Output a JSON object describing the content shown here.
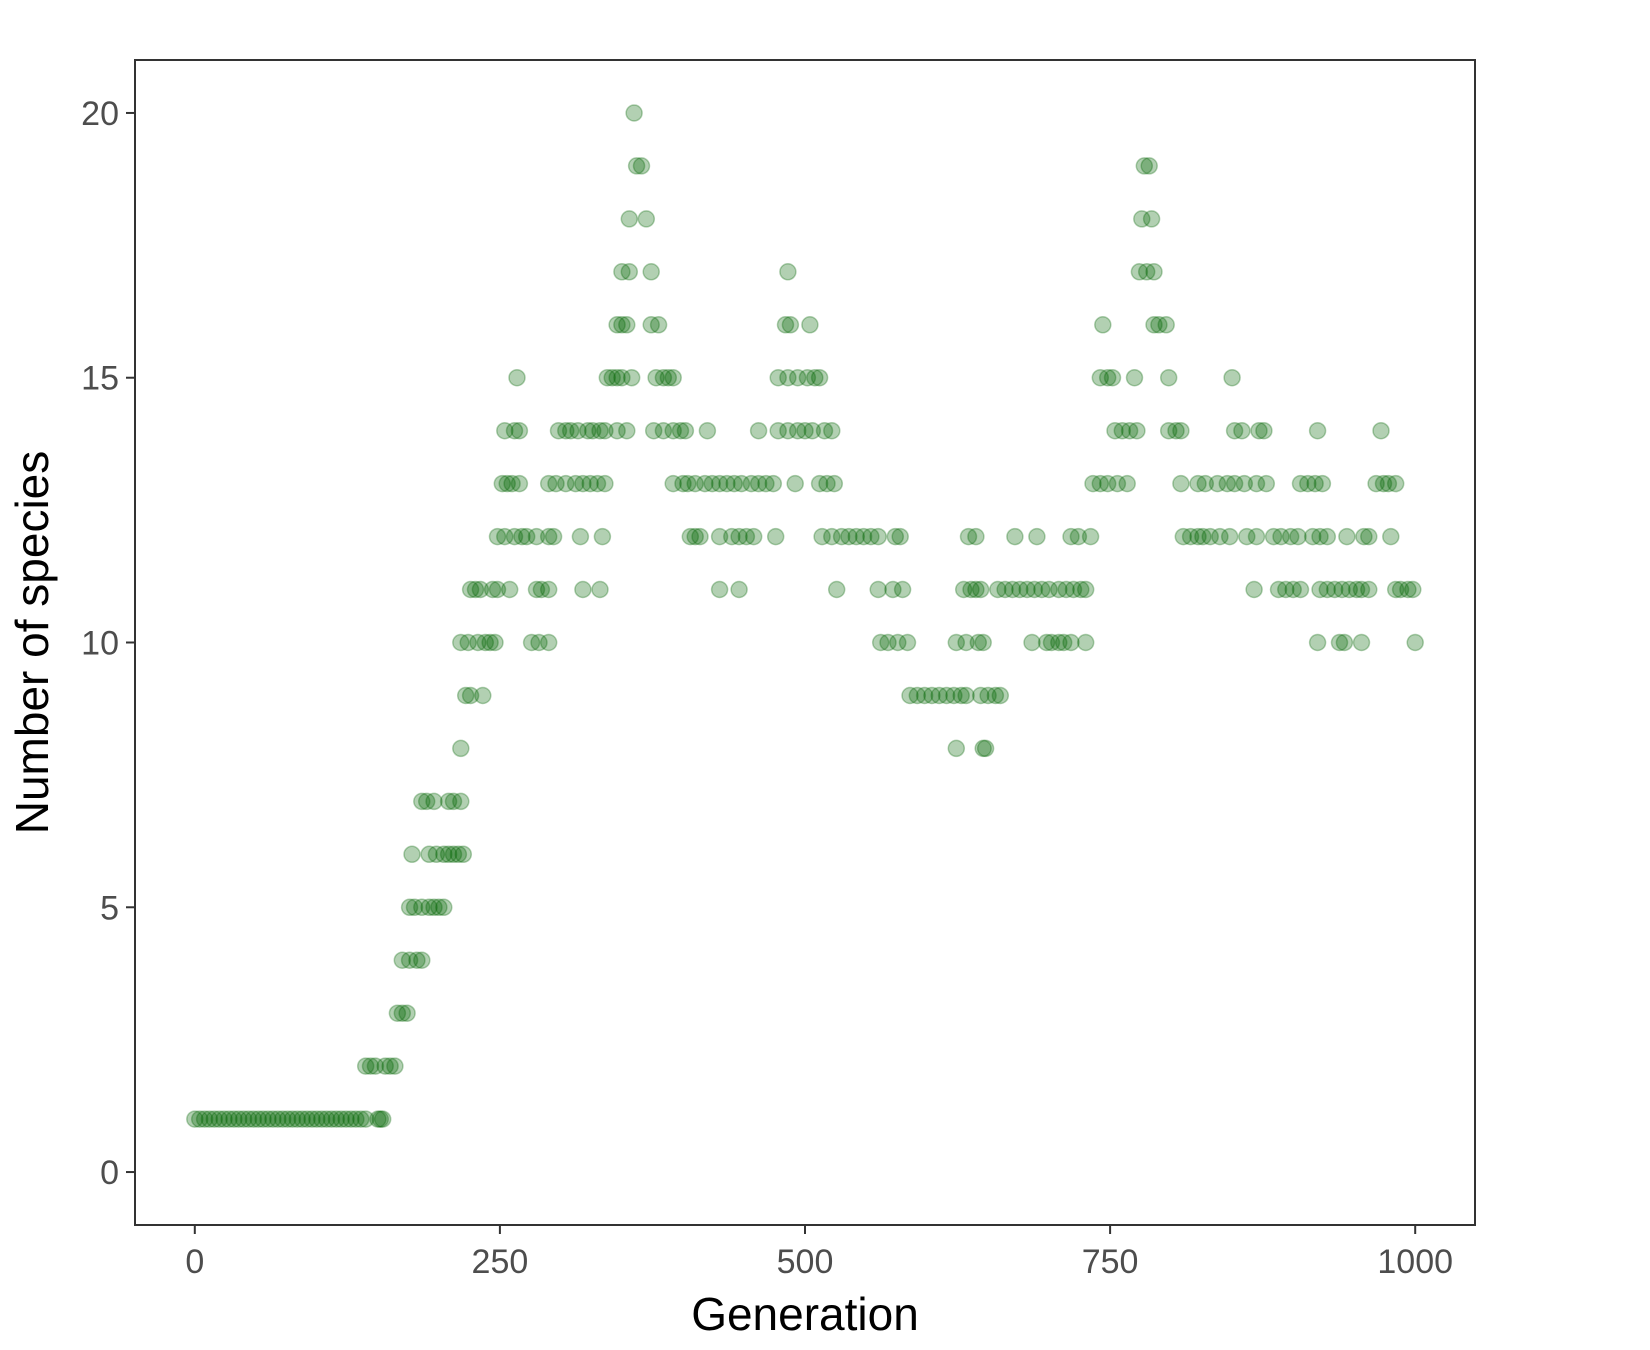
{
  "chart_data": {
    "type": "scatter",
    "title": "",
    "xlabel": "Generation",
    "ylabel": "Number of species",
    "xlim": [
      -49,
      1049
    ],
    "ylim": [
      -1,
      21
    ],
    "x_ticks": [
      0,
      250,
      500,
      750,
      1000
    ],
    "x_tick_labels": [
      "0",
      "250",
      "500",
      "750",
      "1000"
    ],
    "y_ticks": [
      0,
      5,
      10,
      15,
      20
    ],
    "y_tick_labels": [
      "0",
      "5",
      "10",
      "15",
      "20"
    ],
    "grid": false,
    "legend": "none",
    "point_color": "#006400",
    "point_alpha": 0.3,
    "points": [
      [
        0,
        1
      ],
      [
        4,
        1
      ],
      [
        8,
        1
      ],
      [
        12,
        1
      ],
      [
        16,
        1
      ],
      [
        20,
        1
      ],
      [
        24,
        1
      ],
      [
        28,
        1
      ],
      [
        32,
        1
      ],
      [
        36,
        1
      ],
      [
        40,
        1
      ],
      [
        44,
        1
      ],
      [
        48,
        1
      ],
      [
        52,
        1
      ],
      [
        56,
        1
      ],
      [
        60,
        1
      ],
      [
        64,
        1
      ],
      [
        68,
        1
      ],
      [
        72,
        1
      ],
      [
        76,
        1
      ],
      [
        80,
        1
      ],
      [
        84,
        1
      ],
      [
        88,
        1
      ],
      [
        92,
        1
      ],
      [
        96,
        1
      ],
      [
        100,
        1
      ],
      [
        104,
        1
      ],
      [
        108,
        1
      ],
      [
        112,
        1
      ],
      [
        116,
        1
      ],
      [
        120,
        1
      ],
      [
        124,
        1
      ],
      [
        128,
        1
      ],
      [
        132,
        1
      ],
      [
        136,
        1
      ],
      [
        140,
        1
      ],
      [
        140,
        2
      ],
      [
        144,
        2
      ],
      [
        148,
        2
      ],
      [
        150,
        1
      ],
      [
        152,
        1
      ],
      [
        154,
        1
      ],
      [
        156,
        2
      ],
      [
        160,
        2
      ],
      [
        164,
        2
      ],
      [
        166,
        3
      ],
      [
        170,
        3
      ],
      [
        174,
        3
      ],
      [
        170,
        4
      ],
      [
        176,
        4
      ],
      [
        182,
        4
      ],
      [
        186,
        4
      ],
      [
        176,
        5
      ],
      [
        180,
        5
      ],
      [
        186,
        5
      ],
      [
        192,
        5
      ],
      [
        196,
        5
      ],
      [
        200,
        5
      ],
      [
        204,
        5
      ],
      [
        178,
        6
      ],
      [
        192,
        6
      ],
      [
        198,
        6
      ],
      [
        204,
        6
      ],
      [
        208,
        6
      ],
      [
        212,
        6
      ],
      [
        216,
        6
      ],
      [
        220,
        6
      ],
      [
        186,
        7
      ],
      [
        190,
        7
      ],
      [
        196,
        7
      ],
      [
        208,
        7
      ],
      [
        212,
        7
      ],
      [
        218,
        7
      ],
      [
        218,
        8
      ],
      [
        222,
        9
      ],
      [
        226,
        9
      ],
      [
        236,
        9
      ],
      [
        218,
        10
      ],
      [
        224,
        10
      ],
      [
        232,
        10
      ],
      [
        238,
        10
      ],
      [
        242,
        10
      ],
      [
        246,
        10
      ],
      [
        226,
        11
      ],
      [
        230,
        11
      ],
      [
        234,
        11
      ],
      [
        244,
        11
      ],
      [
        248,
        11
      ],
      [
        258,
        11
      ],
      [
        248,
        12
      ],
      [
        254,
        12
      ],
      [
        262,
        12
      ],
      [
        268,
        12
      ],
      [
        272,
        12
      ],
      [
        280,
        12
      ],
      [
        290,
        12
      ],
      [
        294,
        12
      ],
      [
        316,
        12
      ],
      [
        334,
        12
      ],
      [
        252,
        13
      ],
      [
        256,
        13
      ],
      [
        260,
        13
      ],
      [
        266,
        13
      ],
      [
        290,
        13
      ],
      [
        296,
        13
      ],
      [
        304,
        13
      ],
      [
        312,
        13
      ],
      [
        318,
        13
      ],
      [
        324,
        13
      ],
      [
        330,
        13
      ],
      [
        336,
        13
      ],
      [
        254,
        14
      ],
      [
        262,
        14
      ],
      [
        266,
        14
      ],
      [
        298,
        14
      ],
      [
        304,
        14
      ],
      [
        308,
        14
      ],
      [
        314,
        14
      ],
      [
        322,
        14
      ],
      [
        326,
        14
      ],
      [
        332,
        14
      ],
      [
        336,
        14
      ],
      [
        346,
        14
      ],
      [
        354,
        14
      ],
      [
        264,
        15
      ],
      [
        338,
        15
      ],
      [
        342,
        15
      ],
      [
        346,
        15
      ],
      [
        350,
        15
      ],
      [
        358,
        15
      ],
      [
        280,
        11
      ],
      [
        284,
        11
      ],
      [
        290,
        11
      ],
      [
        276,
        10
      ],
      [
        282,
        10
      ],
      [
        290,
        10
      ],
      [
        318,
        11
      ],
      [
        332,
        11
      ],
      [
        346,
        16
      ],
      [
        350,
        16
      ],
      [
        354,
        16
      ],
      [
        350,
        17
      ],
      [
        356,
        17
      ],
      [
        374,
        17
      ],
      [
        356,
        18
      ],
      [
        370,
        18
      ],
      [
        366,
        19
      ],
      [
        362,
        19
      ],
      [
        360,
        20
      ],
      [
        374,
        16
      ],
      [
        380,
        16
      ],
      [
        376,
        14
      ],
      [
        384,
        14
      ],
      [
        392,
        14
      ],
      [
        398,
        14
      ],
      [
        402,
        14
      ],
      [
        420,
        14
      ],
      [
        378,
        15
      ],
      [
        384,
        15
      ],
      [
        388,
        15
      ],
      [
        392,
        15
      ],
      [
        392,
        13
      ],
      [
        400,
        13
      ],
      [
        404,
        13
      ],
      [
        410,
        13
      ],
      [
        418,
        13
      ],
      [
        424,
        13
      ],
      [
        430,
        13
      ],
      [
        436,
        13
      ],
      [
        442,
        13
      ],
      [
        448,
        13
      ],
      [
        456,
        13
      ],
      [
        462,
        13
      ],
      [
        468,
        13
      ],
      [
        474,
        13
      ],
      [
        406,
        12
      ],
      [
        410,
        12
      ],
      [
        414,
        12
      ],
      [
        430,
        12
      ],
      [
        440,
        12
      ],
      [
        446,
        12
      ],
      [
        452,
        12
      ],
      [
        458,
        12
      ],
      [
        476,
        12
      ],
      [
        430,
        11
      ],
      [
        446,
        11
      ],
      [
        462,
        14
      ],
      [
        478,
        14
      ],
      [
        486,
        14
      ],
      [
        494,
        14
      ],
      [
        500,
        14
      ],
      [
        506,
        14
      ],
      [
        516,
        14
      ],
      [
        522,
        14
      ],
      [
        478,
        15
      ],
      [
        486,
        15
      ],
      [
        494,
        15
      ],
      [
        502,
        15
      ],
      [
        508,
        15
      ],
      [
        512,
        15
      ],
      [
        484,
        16
      ],
      [
        488,
        16
      ],
      [
        504,
        16
      ],
      [
        486,
        17
      ],
      [
        492,
        13
      ],
      [
        512,
        13
      ],
      [
        518,
        13
      ],
      [
        524,
        13
      ],
      [
        514,
        12
      ],
      [
        522,
        12
      ],
      [
        530,
        12
      ],
      [
        536,
        12
      ],
      [
        542,
        12
      ],
      [
        548,
        12
      ],
      [
        554,
        12
      ],
      [
        560,
        12
      ],
      [
        574,
        12
      ],
      [
        578,
        12
      ],
      [
        526,
        11
      ],
      [
        560,
        11
      ],
      [
        572,
        11
      ],
      [
        580,
        11
      ],
      [
        562,
        10
      ],
      [
        568,
        10
      ],
      [
        576,
        10
      ],
      [
        584,
        10
      ],
      [
        586,
        9
      ],
      [
        592,
        9
      ],
      [
        598,
        9
      ],
      [
        604,
        9
      ],
      [
        610,
        9
      ],
      [
        616,
        9
      ],
      [
        622,
        9
      ],
      [
        628,
        9
      ],
      [
        632,
        9
      ],
      [
        624,
        10
      ],
      [
        632,
        10
      ],
      [
        642,
        10
      ],
      [
        646,
        10
      ],
      [
        630,
        11
      ],
      [
        636,
        11
      ],
      [
        640,
        11
      ],
      [
        644,
        11
      ],
      [
        634,
        12
      ],
      [
        640,
        12
      ],
      [
        624,
        8
      ],
      [
        646,
        8
      ],
      [
        648,
        8
      ],
      [
        644,
        9
      ],
      [
        650,
        9
      ],
      [
        656,
        9
      ],
      [
        660,
        9
      ],
      [
        658,
        11
      ],
      [
        664,
        11
      ],
      [
        670,
        11
      ],
      [
        676,
        11
      ],
      [
        682,
        11
      ],
      [
        688,
        11
      ],
      [
        694,
        11
      ],
      [
        700,
        11
      ],
      [
        708,
        11
      ],
      [
        714,
        11
      ],
      [
        720,
        11
      ],
      [
        726,
        11
      ],
      [
        730,
        11
      ],
      [
        672,
        12
      ],
      [
        690,
        12
      ],
      [
        718,
        12
      ],
      [
        724,
        12
      ],
      [
        734,
        12
      ],
      [
        686,
        10
      ],
      [
        698,
        10
      ],
      [
        702,
        10
      ],
      [
        708,
        10
      ],
      [
        712,
        10
      ],
      [
        718,
        10
      ],
      [
        730,
        10
      ],
      [
        736,
        13
      ],
      [
        742,
        13
      ],
      [
        748,
        13
      ],
      [
        756,
        13
      ],
      [
        764,
        13
      ],
      [
        742,
        15
      ],
      [
        748,
        15
      ],
      [
        752,
        15
      ],
      [
        770,
        15
      ],
      [
        798,
        15
      ],
      [
        754,
        14
      ],
      [
        760,
        14
      ],
      [
        766,
        14
      ],
      [
        772,
        14
      ],
      [
        744,
        16
      ],
      [
        774,
        17
      ],
      [
        780,
        17
      ],
      [
        786,
        17
      ],
      [
        776,
        18
      ],
      [
        784,
        18
      ],
      [
        778,
        19
      ],
      [
        782,
        19
      ],
      [
        786,
        16
      ],
      [
        790,
        16
      ],
      [
        796,
        16
      ],
      [
        798,
        14
      ],
      [
        804,
        14
      ],
      [
        808,
        14
      ],
      [
        808,
        13
      ],
      [
        822,
        13
      ],
      [
        828,
        13
      ],
      [
        838,
        13
      ],
      [
        846,
        13
      ],
      [
        852,
        13
      ],
      [
        860,
        13
      ],
      [
        870,
        13
      ],
      [
        878,
        13
      ],
      [
        810,
        12
      ],
      [
        816,
        12
      ],
      [
        822,
        12
      ],
      [
        826,
        12
      ],
      [
        832,
        12
      ],
      [
        840,
        12
      ],
      [
        848,
        12
      ],
      [
        862,
        12
      ],
      [
        870,
        12
      ],
      [
        884,
        12
      ],
      [
        890,
        12
      ],
      [
        898,
        12
      ],
      [
        904,
        12
      ],
      [
        916,
        12
      ],
      [
        922,
        12
      ],
      [
        850,
        15
      ],
      [
        852,
        14
      ],
      [
        858,
        14
      ],
      [
        872,
        14
      ],
      [
        876,
        14
      ],
      [
        920,
        14
      ],
      [
        868,
        11
      ],
      [
        888,
        11
      ],
      [
        894,
        11
      ],
      [
        900,
        11
      ],
      [
        906,
        11
      ],
      [
        906,
        13
      ],
      [
        912,
        13
      ],
      [
        918,
        13
      ],
      [
        924,
        13
      ],
      [
        922,
        11
      ],
      [
        928,
        11
      ],
      [
        934,
        11
      ],
      [
        940,
        11
      ],
      [
        946,
        11
      ],
      [
        952,
        11
      ],
      [
        956,
        11
      ],
      [
        962,
        11
      ],
      [
        928,
        12
      ],
      [
        944,
        12
      ],
      [
        958,
        12
      ],
      [
        962,
        12
      ],
      [
        980,
        12
      ],
      [
        920,
        10
      ],
      [
        938,
        10
      ],
      [
        942,
        10
      ],
      [
        956,
        10
      ],
      [
        968,
        13
      ],
      [
        974,
        13
      ],
      [
        978,
        13
      ],
      [
        984,
        13
      ],
      [
        972,
        14
      ],
      [
        984,
        11
      ],
      [
        988,
        11
      ],
      [
        994,
        11
      ],
      [
        998,
        11
      ],
      [
        1000,
        10
      ]
    ]
  }
}
